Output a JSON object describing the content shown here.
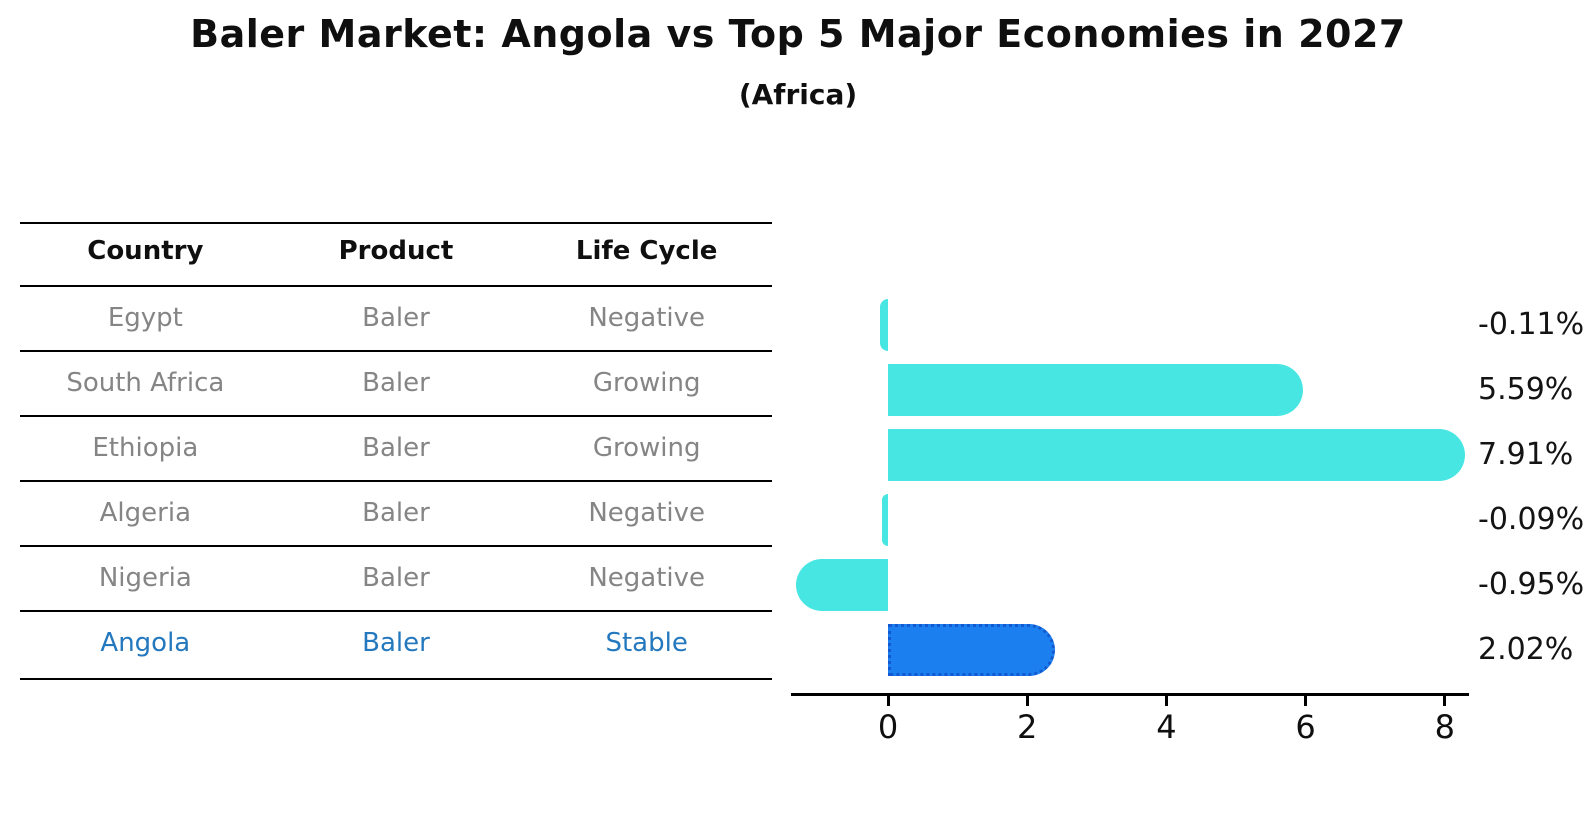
{
  "title": "Baler Market: Angola vs Top 5 Major Economies in 2027",
  "subtitle": "(Africa)",
  "table": {
    "columns": [
      "Country",
      "Product",
      "Life Cycle"
    ],
    "rows": [
      {
        "country": "Egypt",
        "product": "Baler",
        "life_cycle": "Negative",
        "highlight": false
      },
      {
        "country": "South Africa",
        "product": "Baler",
        "life_cycle": "Growing",
        "highlight": false
      },
      {
        "country": "Ethiopia",
        "product": "Baler",
        "life_cycle": "Growing",
        "highlight": false
      },
      {
        "country": "Algeria",
        "product": "Baler",
        "life_cycle": "Negative",
        "highlight": false
      },
      {
        "country": "Nigeria",
        "product": "Baler",
        "life_cycle": "Negative",
        "highlight": false
      },
      {
        "country": "Angola",
        "product": "Baler",
        "life_cycle": "Stable",
        "highlight": true
      }
    ]
  },
  "chart_data": {
    "type": "bar",
    "orientation": "horizontal",
    "title": "Baler Market: Angola vs Top 5 Major Economies in 2027 (Africa)",
    "categories": [
      "Egypt",
      "South Africa",
      "Ethiopia",
      "Algeria",
      "Nigeria",
      "Angola"
    ],
    "values": [
      -0.11,
      5.59,
      7.91,
      -0.09,
      -0.95,
      2.02
    ],
    "value_labels": [
      "-0.11%",
      "5.59%",
      "7.91%",
      "-0.09%",
      "-0.95%",
      "2.02%"
    ],
    "unit": "percent growth",
    "highlight_category": "Angola",
    "x_ticks": [
      0,
      2,
      4,
      6,
      8
    ],
    "xlim": [
      -1.4,
      8.35
    ],
    "grid": false,
    "legend": false
  },
  "colors": {
    "bar_default": "#48E6E3",
    "bar_highlight": "#1C7FEF",
    "bar_highlight_edge": "#1359CF",
    "highlight_text": "#2478BE",
    "table_text": "#858585",
    "heading_text": "#0f0f0f"
  }
}
